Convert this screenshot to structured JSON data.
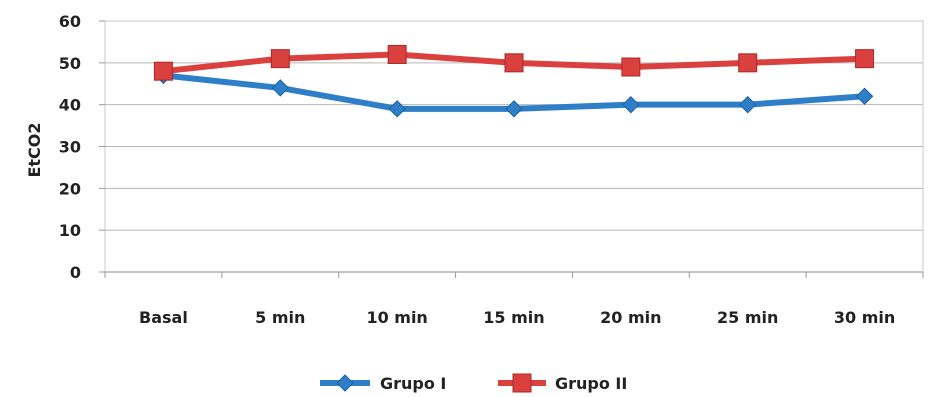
{
  "chart_data": {
    "type": "line",
    "title": "",
    "xlabel": "",
    "ylabel": "EtCO2",
    "categories": [
      "Basal",
      "5 min",
      "10 min",
      "15 min",
      "20 min",
      "25 min",
      "30 min"
    ],
    "ylim": [
      0,
      60
    ],
    "yticks": [
      0,
      10,
      20,
      30,
      40,
      50,
      60
    ],
    "grid": true,
    "legend_position": "bottom",
    "series": [
      {
        "name": "Grupo I",
        "values": [
          47,
          44,
          39,
          39,
          40,
          40,
          42
        ],
        "color": "#2f7fc8",
        "marker": "diamond"
      },
      {
        "name": "Grupo II",
        "values": [
          48,
          51,
          52,
          50,
          49,
          50,
          51
        ],
        "color": "#d9403e",
        "marker": "square"
      }
    ]
  }
}
